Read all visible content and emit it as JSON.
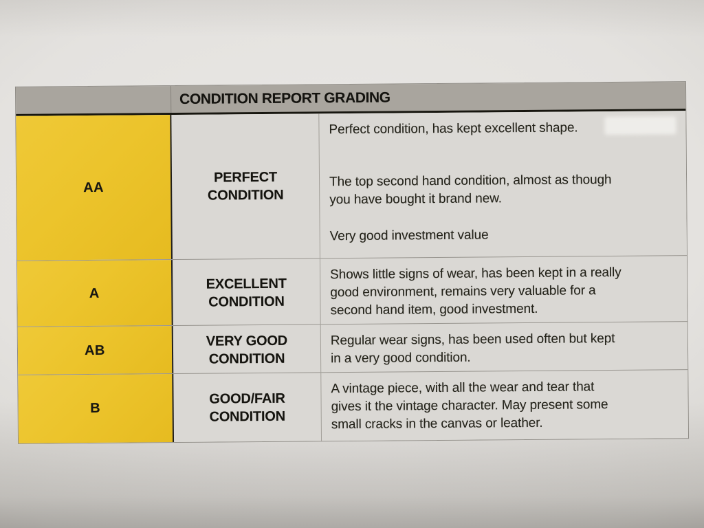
{
  "table": {
    "title": "CONDITION REPORT GRADING",
    "rows": [
      {
        "grade": "AA",
        "condition": "PERFECT\nCONDITION",
        "desc_p1": "Perfect condition, has kept excellent shape.",
        "desc_p2": "The top second hand condition, almost as though\nyou have bought it brand new.",
        "desc_p3": "Very good investment value"
      },
      {
        "grade": "A",
        "condition": "EXCELLENT\nCONDITION",
        "desc_p1": "Shows little signs of wear, has been kept in a really\ngood environment, remains very valuable for a\nsecond hand item, good investment."
      },
      {
        "grade": "AB",
        "condition": "VERY GOOD\nCONDITION",
        "desc_p1": "Regular wear signs, has been used often but kept\nin a very good condition."
      },
      {
        "grade": "B",
        "condition": "GOOD/FAIR\nCONDITION",
        "desc_p1": "A vintage piece, with all the wear and tear that\ngives it the vintage character. May present some\nsmall cracks in the canvas or leather."
      }
    ]
  },
  "colors": {
    "yellow": "#ecc42c",
    "header_gray": "#a9a59e",
    "cell_gray": "#dad8d4",
    "ink": "#1c1b18",
    "paper": "#e5e3e0"
  }
}
